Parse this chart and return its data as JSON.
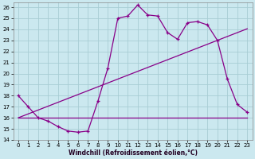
{
  "xlabel": "Windchill (Refroidissement éolien,°C)",
  "bg_color": "#cbe8ef",
  "grid_color": "#a8cdd4",
  "line_color": "#880088",
  "spine_color": "#888888",
  "xlim": [
    -0.5,
    23.5
  ],
  "ylim": [
    14,
    26.4
  ],
  "xticks": [
    0,
    1,
    2,
    3,
    4,
    5,
    6,
    7,
    8,
    9,
    10,
    11,
    12,
    13,
    14,
    15,
    16,
    17,
    18,
    19,
    20,
    21,
    22,
    23
  ],
  "yticks": [
    14,
    15,
    16,
    17,
    18,
    19,
    20,
    21,
    22,
    23,
    24,
    25,
    26
  ],
  "series1_x": [
    0,
    1,
    2,
    3,
    4,
    5,
    6,
    7,
    8,
    9,
    10,
    11,
    12,
    13,
    14,
    15,
    16,
    17,
    18,
    19,
    20,
    21,
    22,
    23
  ],
  "series1_y": [
    18,
    17,
    16,
    15.7,
    15.2,
    14.8,
    14.7,
    14.8,
    17.5,
    20.5,
    25.0,
    25.2,
    26.2,
    25.3,
    25.2,
    23.7,
    23.1,
    24.6,
    24.7,
    24.4,
    23.0,
    19.5,
    17.2,
    16.5
  ],
  "series2_x": [
    0,
    2,
    3,
    4,
    5,
    6,
    7,
    8,
    9,
    10,
    11,
    12,
    13,
    14,
    15,
    16,
    17,
    18,
    19,
    20,
    21,
    22,
    23
  ],
  "series2_y": [
    16,
    16,
    16,
    16,
    16,
    16,
    16,
    16,
    16,
    16,
    16,
    16,
    16,
    16,
    16,
    16,
    16,
    16,
    16,
    16,
    16,
    16,
    16
  ],
  "series3_x": [
    0,
    1,
    2,
    3,
    4,
    5,
    6,
    7,
    8,
    9,
    10,
    11,
    12,
    13,
    14,
    15,
    16,
    17,
    18,
    19,
    20,
    21,
    22,
    23
  ],
  "series3_y": [
    16.0,
    16.35,
    16.7,
    17.05,
    17.4,
    17.75,
    18.1,
    18.45,
    18.8,
    19.15,
    19.5,
    19.85,
    20.2,
    20.55,
    20.9,
    21.25,
    21.6,
    21.95,
    22.3,
    22.65,
    23.0,
    23.35,
    23.7,
    24.05
  ],
  "tick_fontsize": 5,
  "xlabel_fontsize": 5.5
}
